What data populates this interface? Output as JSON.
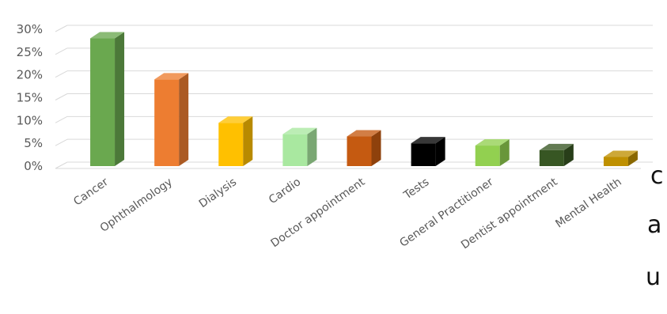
{
  "chart_data": {
    "type": "bar",
    "categories": [
      "Cancer",
      "Ophthalmology",
      "Dialysis",
      "Cardio",
      "Doctor appointment",
      "Tests",
      "General Practitioner",
      "Dentist appointment",
      "Mental Health"
    ],
    "values": [
      28,
      19,
      9.5,
      7,
      6.5,
      5,
      4.5,
      3.5,
      2
    ],
    "value_unit": "%",
    "ylim": [
      0,
      30
    ],
    "yticks": [
      "0%",
      "5%",
      "10%",
      "15%",
      "20%",
      "25%",
      "30%"
    ],
    "grid": true,
    "style": "3d-column",
    "colors": [
      "#6aa84f",
      "#ed7d31",
      "#ffc000",
      "#a9e8a0",
      "#c55a11",
      "#000000",
      "#92d050",
      "#375623",
      "#bf9000"
    ]
  },
  "side_text": [
    "c",
    "a",
    "u"
  ]
}
